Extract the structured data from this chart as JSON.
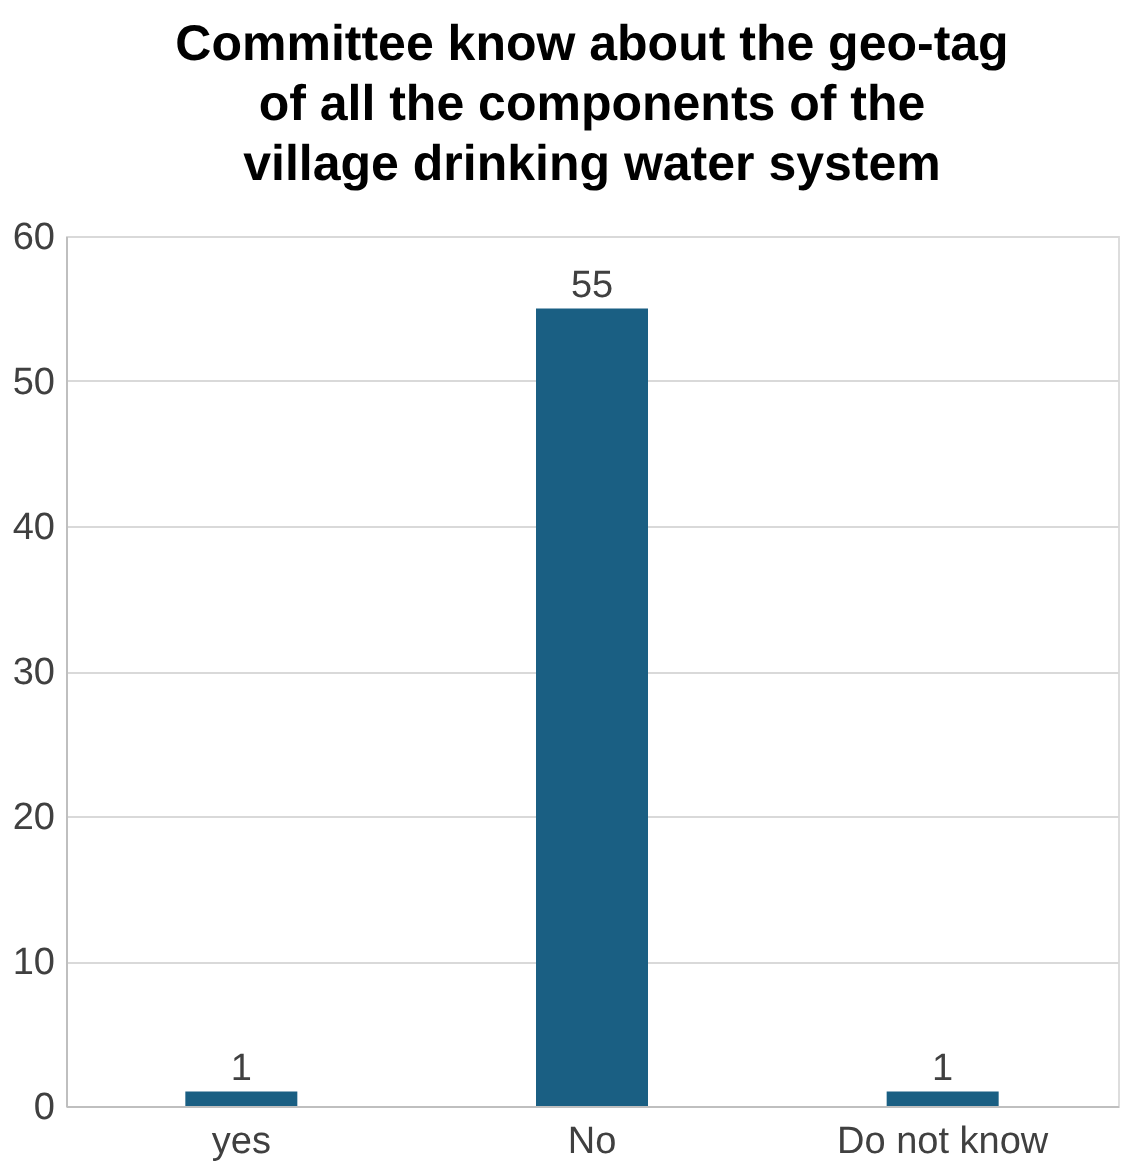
{
  "chart_data": {
    "type": "bar",
    "title": "Committee know about the geo-tag of all the components of the village drinking water system",
    "categories": [
      "yes",
      "No",
      "Do not know"
    ],
    "values": [
      1,
      55,
      1
    ],
    "color": "#1a5f83",
    "ylim": [
      0,
      60
    ],
    "yticks": [
      0,
      10,
      20,
      30,
      40,
      50,
      60
    ],
    "grid": "y",
    "data_labels": true
  }
}
